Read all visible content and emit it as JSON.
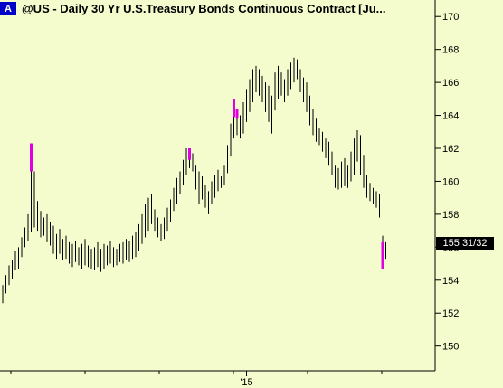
{
  "title": {
    "badge": "A",
    "text": "@US - Daily  30 Yr U.S.Treasury Bonds Continuous Contract [Ju..."
  },
  "last_price_label": "155 31/32",
  "colors": {
    "background": "#f4fccd",
    "bar": "#000000",
    "highlight": "#e000e0",
    "badge": "#0000c8"
  },
  "chart_data": {
    "type": "bar",
    "subtype": "ohlc",
    "title": "@US - Daily  30 Yr U.S.Treasury Bonds Continuous Contract [Ju...",
    "xlabel": "",
    "ylabel": "",
    "ylim": [
      148.5,
      171
    ],
    "yticks": [
      150,
      152,
      154,
      156,
      158,
      160,
      162,
      164,
      166,
      168,
      170
    ],
    "xticks": [
      {
        "label": "'15",
        "index": 77
      }
    ],
    "grid": false,
    "last_price": "155 31/32",
    "bars": [
      {
        "i": 0,
        "low": 152.6,
        "high": 153.7
      },
      {
        "i": 1,
        "low": 153.2,
        "high": 154.3
      },
      {
        "i": 2,
        "low": 153.7,
        "high": 154.9
      },
      {
        "i": 3,
        "low": 154.1,
        "high": 155.2
      },
      {
        "i": 4,
        "low": 154.6,
        "high": 155.8
      },
      {
        "i": 5,
        "low": 154.7,
        "high": 156.0
      },
      {
        "i": 6,
        "low": 155.4,
        "high": 156.6
      },
      {
        "i": 7,
        "low": 156.0,
        "high": 157.2
      },
      {
        "i": 8,
        "low": 156.4,
        "high": 158.0
      },
      {
        "i": 9,
        "low": 156.9,
        "high": 162.3
      },
      {
        "i": 10,
        "low": 157.2,
        "high": 160.6
      },
      {
        "i": 11,
        "low": 157.0,
        "high": 158.8
      },
      {
        "i": 12,
        "low": 156.6,
        "high": 158.2
      },
      {
        "i": 13,
        "low": 156.7,
        "high": 157.8
      },
      {
        "i": 14,
        "low": 156.3,
        "high": 158.0
      },
      {
        "i": 15,
        "low": 156.1,
        "high": 157.5
      },
      {
        "i": 16,
        "low": 155.6,
        "high": 157.3
      },
      {
        "i": 17,
        "low": 155.3,
        "high": 156.8
      },
      {
        "i": 18,
        "low": 155.6,
        "high": 157.1
      },
      {
        "i": 19,
        "low": 155.2,
        "high": 156.5
      },
      {
        "i": 20,
        "low": 155.3,
        "high": 156.7
      },
      {
        "i": 21,
        "low": 155.0,
        "high": 156.3
      },
      {
        "i": 22,
        "low": 154.8,
        "high": 156.2
      },
      {
        "i": 23,
        "low": 155.1,
        "high": 156.4
      },
      {
        "i": 24,
        "low": 154.9,
        "high": 156.0
      },
      {
        "i": 25,
        "low": 154.7,
        "high": 156.2
      },
      {
        "i": 26,
        "low": 154.9,
        "high": 156.5
      },
      {
        "i": 27,
        "low": 154.8,
        "high": 156.1
      },
      {
        "i": 28,
        "low": 154.7,
        "high": 155.9
      },
      {
        "i": 29,
        "low": 154.6,
        "high": 156.0
      },
      {
        "i": 30,
        "low": 154.8,
        "high": 156.3
      },
      {
        "i": 31,
        "low": 154.5,
        "high": 155.9
      },
      {
        "i": 32,
        "low": 154.7,
        "high": 156.2
      },
      {
        "i": 33,
        "low": 154.9,
        "high": 156.1
      },
      {
        "i": 34,
        "low": 155.0,
        "high": 156.4
      },
      {
        "i": 35,
        "low": 154.8,
        "high": 156.0
      },
      {
        "i": 36,
        "low": 154.9,
        "high": 155.9
      },
      {
        "i": 37,
        "low": 155.1,
        "high": 156.2
      },
      {
        "i": 38,
        "low": 155.0,
        "high": 156.3
      },
      {
        "i": 39,
        "low": 155.2,
        "high": 156.5
      },
      {
        "i": 40,
        "low": 155.1,
        "high": 156.4
      },
      {
        "i": 41,
        "low": 155.3,
        "high": 156.7
      },
      {
        "i": 42,
        "low": 155.4,
        "high": 156.9
      },
      {
        "i": 43,
        "low": 155.8,
        "high": 157.4
      },
      {
        "i": 44,
        "low": 156.2,
        "high": 158.0
      },
      {
        "i": 45,
        "low": 156.6,
        "high": 158.6
      },
      {
        "i": 46,
        "low": 157.0,
        "high": 159.0
      },
      {
        "i": 47,
        "low": 157.4,
        "high": 159.2
      },
      {
        "i": 48,
        "low": 157.0,
        "high": 158.3
      },
      {
        "i": 49,
        "low": 156.6,
        "high": 157.8
      },
      {
        "i": 50,
        "low": 156.4,
        "high": 157.4
      },
      {
        "i": 51,
        "low": 156.5,
        "high": 157.8
      },
      {
        "i": 52,
        "low": 157.0,
        "high": 158.4
      },
      {
        "i": 53,
        "low": 157.5,
        "high": 158.9
      },
      {
        "i": 54,
        "low": 158.2,
        "high": 159.6
      },
      {
        "i": 55,
        "low": 158.6,
        "high": 160.2
      },
      {
        "i": 56,
        "low": 159.2,
        "high": 160.6
      },
      {
        "i": 57,
        "low": 159.8,
        "high": 161.3
      },
      {
        "i": 58,
        "low": 160.4,
        "high": 162.0
      },
      {
        "i": 59,
        "low": 160.8,
        "high": 162.0
      },
      {
        "i": 60,
        "low": 160.6,
        "high": 161.7
      },
      {
        "i": 61,
        "low": 159.5,
        "high": 161.0
      },
      {
        "i": 62,
        "low": 158.6,
        "high": 160.6
      },
      {
        "i": 63,
        "low": 158.9,
        "high": 160.3
      },
      {
        "i": 64,
        "low": 158.4,
        "high": 159.8
      },
      {
        "i": 65,
        "low": 158.0,
        "high": 159.4
      },
      {
        "i": 66,
        "low": 158.6,
        "high": 160.0
      },
      {
        "i": 67,
        "low": 159.0,
        "high": 160.4
      },
      {
        "i": 68,
        "low": 159.4,
        "high": 160.7
      },
      {
        "i": 69,
        "low": 159.6,
        "high": 160.3
      },
      {
        "i": 70,
        "low": 159.8,
        "high": 161.0
      },
      {
        "i": 71,
        "low": 160.5,
        "high": 162.2
      },
      {
        "i": 72,
        "low": 161.5,
        "high": 163.5
      },
      {
        "i": 73,
        "low": 162.6,
        "high": 165.0
      },
      {
        "i": 74,
        "low": 162.8,
        "high": 164.4
      },
      {
        "i": 75,
        "low": 162.6,
        "high": 164.0
      },
      {
        "i": 76,
        "low": 162.9,
        "high": 164.8
      },
      {
        "i": 77,
        "low": 163.6,
        "high": 165.6
      },
      {
        "i": 78,
        "low": 164.2,
        "high": 166.2
      },
      {
        "i": 79,
        "low": 164.8,
        "high": 166.8
      },
      {
        "i": 80,
        "low": 165.4,
        "high": 167.0
      },
      {
        "i": 81,
        "low": 165.2,
        "high": 166.8
      },
      {
        "i": 82,
        "low": 164.8,
        "high": 166.4
      },
      {
        "i": 83,
        "low": 164.2,
        "high": 166.0
      },
      {
        "i": 84,
        "low": 163.6,
        "high": 165.8
      },
      {
        "i": 85,
        "low": 162.9,
        "high": 165.2
      },
      {
        "i": 86,
        "low": 164.3,
        "high": 166.6
      },
      {
        "i": 87,
        "low": 165.0,
        "high": 167.0
      },
      {
        "i": 88,
        "low": 165.2,
        "high": 166.6
      },
      {
        "i": 89,
        "low": 164.8,
        "high": 166.2
      },
      {
        "i": 90,
        "low": 165.2,
        "high": 166.8
      },
      {
        "i": 91,
        "low": 165.6,
        "high": 167.2
      },
      {
        "i": 92,
        "low": 166.0,
        "high": 167.5
      },
      {
        "i": 93,
        "low": 166.2,
        "high": 167.4
      },
      {
        "i": 94,
        "low": 165.4,
        "high": 166.8
      },
      {
        "i": 95,
        "low": 164.8,
        "high": 166.3
      },
      {
        "i": 96,
        "low": 164.2,
        "high": 166.0
      },
      {
        "i": 97,
        "low": 163.4,
        "high": 165.2
      },
      {
        "i": 98,
        "low": 162.8,
        "high": 164.4
      },
      {
        "i": 99,
        "low": 162.4,
        "high": 163.8
      },
      {
        "i": 100,
        "low": 162.2,
        "high": 163.2
      },
      {
        "i": 101,
        "low": 161.8,
        "high": 163.0
      },
      {
        "i": 102,
        "low": 161.4,
        "high": 162.6
      },
      {
        "i": 103,
        "low": 161.0,
        "high": 162.4
      },
      {
        "i": 104,
        "low": 160.4,
        "high": 161.8
      },
      {
        "i": 105,
        "low": 159.6,
        "high": 161.0
      },
      {
        "i": 106,
        "low": 159.5,
        "high": 160.8
      },
      {
        "i": 107,
        "low": 159.6,
        "high": 161.2
      },
      {
        "i": 108,
        "low": 159.7,
        "high": 161.4
      },
      {
        "i": 109,
        "low": 159.6,
        "high": 161.0
      },
      {
        "i": 110,
        "low": 160.0,
        "high": 161.8
      },
      {
        "i": 111,
        "low": 160.4,
        "high": 162.6
      },
      {
        "i": 112,
        "low": 161.2,
        "high": 163.1
      },
      {
        "i": 113,
        "low": 160.4,
        "high": 162.8
      },
      {
        "i": 114,
        "low": 159.6,
        "high": 161.6
      },
      {
        "i": 115,
        "low": 159.0,
        "high": 160.4
      },
      {
        "i": 116,
        "low": 158.8,
        "high": 159.9
      },
      {
        "i": 117,
        "low": 158.6,
        "high": 159.6
      },
      {
        "i": 118,
        "low": 158.4,
        "high": 159.4
      },
      {
        "i": 119,
        "low": 157.8,
        "high": 159.2
      },
      {
        "i": 120,
        "low": 154.7,
        "high": 156.7
      },
      {
        "i": 121,
        "low": 155.3,
        "high": 156.3
      }
    ],
    "highlights": [
      {
        "i": 9,
        "low": 160.6,
        "high": 162.3
      },
      {
        "i": 59,
        "low": 161.3,
        "high": 162.0
      },
      {
        "i": 73,
        "low": 163.9,
        "high": 165.0
      },
      {
        "i": 74,
        "low": 163.8,
        "high": 164.4
      },
      {
        "i": 120,
        "low": 154.7,
        "high": 156.3
      }
    ]
  }
}
